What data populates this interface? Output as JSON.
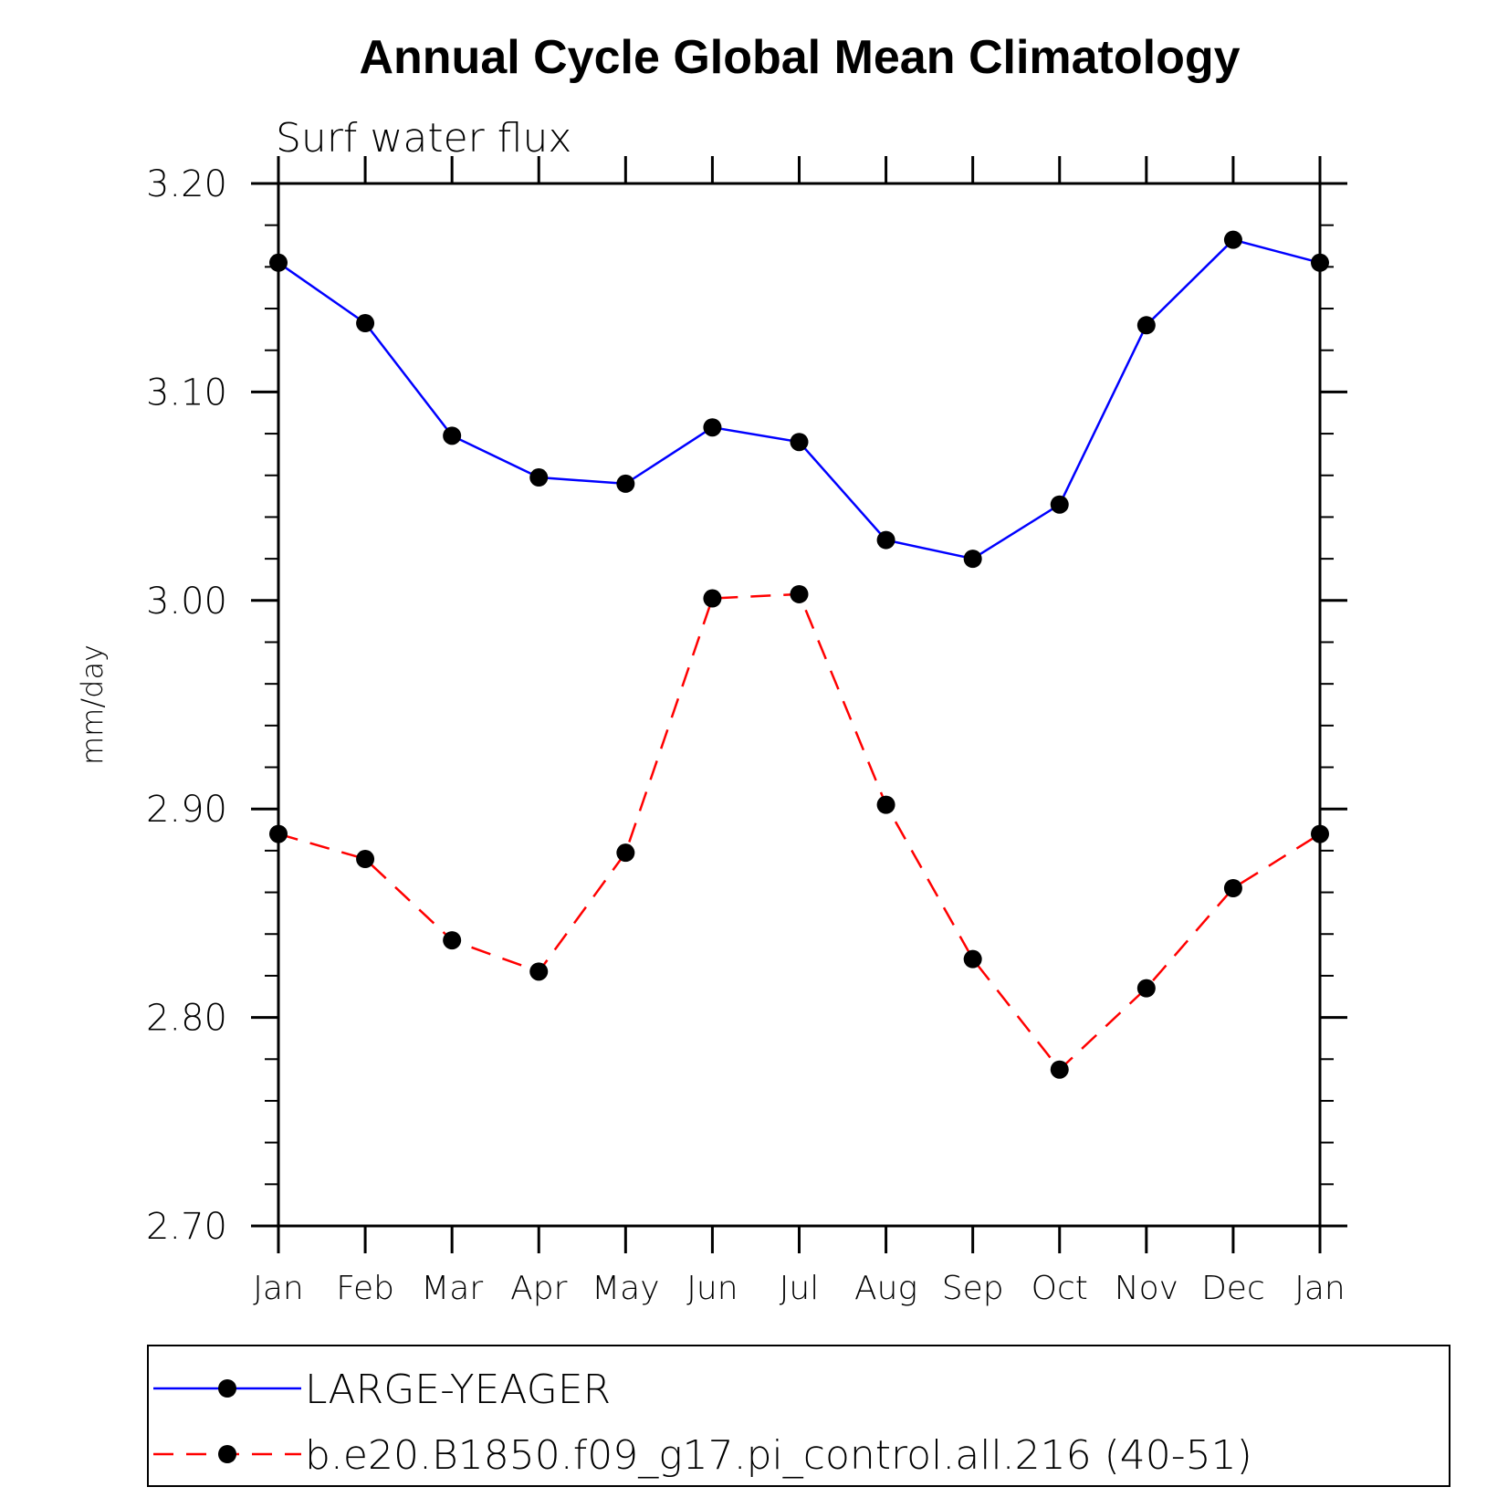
{
  "chart_data": {
    "type": "line",
    "title": "Annual Cycle Global Mean Climatology",
    "subtitle": "Surf water flux",
    "xlabel": "",
    "ylabel": "mm/day",
    "categories": [
      "Jan",
      "Feb",
      "Mar",
      "Apr",
      "May",
      "Jun",
      "Jul",
      "Aug",
      "Sep",
      "Oct",
      "Nov",
      "Dec",
      "Jan"
    ],
    "yticks": [
      "2.70",
      "2.80",
      "2.90",
      "3.00",
      "3.10",
      "3.20"
    ],
    "ylim": [
      2.7,
      3.2
    ],
    "grid": false,
    "legend_position": "bottom",
    "series": [
      {
        "name": "LARGE-YEAGER",
        "color": "#0000ff",
        "dash": "solid",
        "marker": "filled-circle",
        "values": [
          3.162,
          3.133,
          3.079,
          3.059,
          3.056,
          3.083,
          3.076,
          3.029,
          3.02,
          3.046,
          3.132,
          3.173,
          3.162
        ]
      },
      {
        "name": "b.e20.B1850.f09_g17.pi_control.all.216 (40-51)",
        "color": "#ff0000",
        "dash": "dashed",
        "marker": "filled-circle",
        "values": [
          2.888,
          2.876,
          2.837,
          2.822,
          2.879,
          3.001,
          3.003,
          2.902,
          2.828,
          2.775,
          2.814,
          2.862,
          2.888
        ]
      }
    ]
  }
}
